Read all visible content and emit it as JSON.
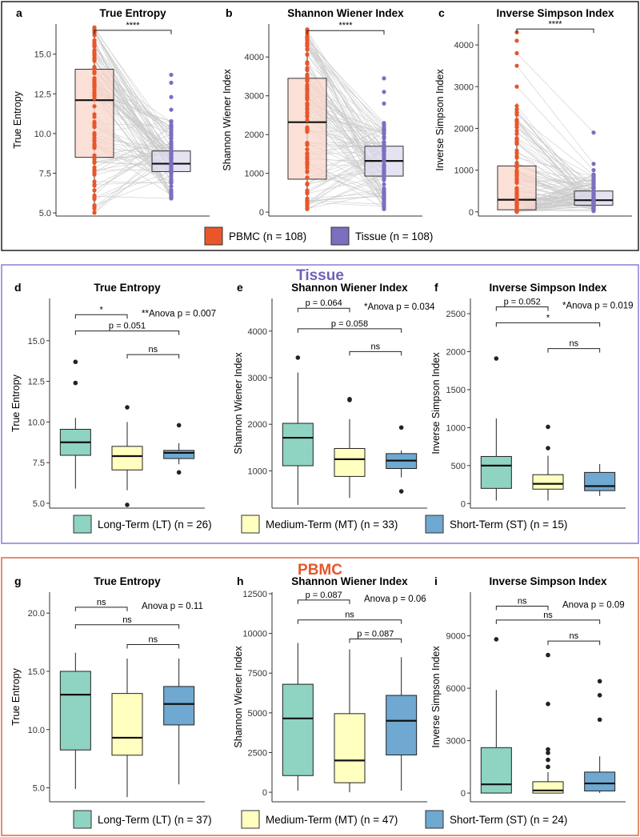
{
  "colors": {
    "pbmc": "#e8562a",
    "pbmc_fill": "#f9d6cb",
    "tissue": "#7b6fbf",
    "tissue_fill": "#dcd9ee",
    "lt": "#8fd3c3",
    "mt": "#ffffbf",
    "st": "#6fa8d0",
    "tissue_frame": "#8a7fd0",
    "pbmc_frame": "#e0673e",
    "tissue_title": "#6d63b8",
    "pbmc_title": "#e8562a"
  },
  "sections": {
    "tissue_title": "Tissue",
    "pbmc_title": "PBMC"
  },
  "legend_top": [
    {
      "label": "PBMC (n = 108)",
      "color": "#e8562a"
    },
    {
      "label": "Tissue (n = 108)",
      "color": "#7b6fbf"
    }
  ],
  "legend_tissue": [
    {
      "label": "Long-Term (LT) (n = 26)",
      "color": "#8fd3c3"
    },
    {
      "label": "Medium-Term (MT) (n = 33)",
      "color": "#ffffbf"
    },
    {
      "label": "Short-Term (ST) (n = 15)",
      "color": "#6fa8d0"
    }
  ],
  "legend_pbmc": [
    {
      "label": "Long-Term (LT) (n = 37)",
      "color": "#8fd3c3"
    },
    {
      "label": "Medium-Term (MT) (n = 47)",
      "color": "#ffffbf"
    },
    {
      "label": "Short-Term (ST) (n = 24)",
      "color": "#6fa8d0"
    }
  ],
  "chart_data": [
    {
      "id": "a",
      "type": "boxplot",
      "title": "True Entropy",
      "ylabel": "True Entropy",
      "ylim": [
        4.8,
        16.9
      ],
      "yticks": [
        5.0,
        7.5,
        10.0,
        12.5,
        15.0
      ],
      "tick_labels": [
        "5.0",
        "7.5",
        "10.0",
        "12.5",
        "15.0"
      ],
      "categories": [
        "PBMC",
        "Tissue"
      ],
      "boxes": [
        {
          "q1": 8.5,
          "median": 12.1,
          "q3": 14.05,
          "lo": 5.0,
          "hi": 16.7,
          "outliers": []
        },
        {
          "q1": 7.6,
          "median": 8.1,
          "q3": 8.9,
          "lo": 5.9,
          "hi": 10.8,
          "outliers": [
            11.5,
            12.3,
            13.2,
            13.7
          ]
        }
      ],
      "paired_points": true,
      "comparisons": [
        {
          "from": 0,
          "to": 1,
          "label": "****",
          "y": 16.5
        }
      ],
      "annotation": ""
    },
    {
      "id": "b",
      "type": "boxplot",
      "title": "Shannon Wiener Index",
      "ylabel": "Shannon Wiener Index",
      "ylim": [
        -100,
        4850
      ],
      "yticks": [
        0,
        1000,
        2000,
        3000,
        4000
      ],
      "tick_labels": [
        "0",
        "1000",
        "2000",
        "3000",
        "4000"
      ],
      "categories": [
        "PBMC",
        "Tissue"
      ],
      "boxes": [
        {
          "q1": 850,
          "median": 2320,
          "q3": 3450,
          "lo": 60,
          "hi": 4750,
          "outliers": []
        },
        {
          "q1": 930,
          "median": 1320,
          "q3": 1700,
          "lo": 60,
          "hi": 2300,
          "outliers": [
            2800,
            3100,
            3450
          ]
        }
      ],
      "paired_points": true,
      "comparisons": [
        {
          "from": 0,
          "to": 1,
          "label": "****",
          "y": 4680
        }
      ],
      "annotation": ""
    },
    {
      "id": "c",
      "type": "boxplot",
      "title": "Inverse Simpson Index",
      "ylabel": "Inverse Simpson Index",
      "ylim": [
        -100,
        4500
      ],
      "yticks": [
        0,
        1000,
        2000,
        3000,
        4000
      ],
      "tick_labels": [
        "0",
        "1000",
        "2000",
        "3000",
        "4000"
      ],
      "categories": [
        "PBMC",
        "Tissue"
      ],
      "boxes": [
        {
          "q1": 50,
          "median": 290,
          "q3": 1100,
          "lo": 0,
          "hi": 2600,
          "outliers": [
            3000,
            3500,
            3800,
            4100,
            4300
          ]
        },
        {
          "q1": 160,
          "median": 280,
          "q3": 500,
          "lo": 0,
          "hi": 900,
          "outliers": [
            1000,
            1150,
            1900
          ]
        }
      ],
      "paired_points": true,
      "comparisons": [
        {
          "from": 0,
          "to": 1,
          "label": "****",
          "y": 4380
        }
      ],
      "annotation": ""
    },
    {
      "id": "d",
      "type": "boxplot",
      "title": "True Entropy",
      "ylabel": "True Entropy",
      "ylim": [
        4.7,
        17.6
      ],
      "yticks": [
        5.0,
        7.5,
        10.0,
        12.5,
        15.0
      ],
      "tick_labels": [
        "5.0",
        "7.5",
        "10.0",
        "12.5",
        "15.0"
      ],
      "categories": [
        "LT",
        "MT",
        "ST"
      ],
      "boxes": [
        {
          "q1": 7.95,
          "median": 8.75,
          "q3": 9.55,
          "lo": 5.9,
          "hi": 10.25,
          "outliers": [
            12.4,
            13.7
          ]
        },
        {
          "q1": 7.05,
          "median": 7.9,
          "q3": 8.5,
          "lo": 5.8,
          "hi": 10.0,
          "outliers": [
            4.9,
            10.9
          ]
        },
        {
          "q1": 7.75,
          "median": 8.1,
          "q3": 8.25,
          "lo": 7.4,
          "hi": 8.7,
          "outliers": [
            6.9,
            9.8
          ]
        }
      ],
      "comparisons": [
        {
          "from": 0,
          "to": 1,
          "label": "*",
          "y": 16.6
        },
        {
          "from": 0,
          "to": 2,
          "label": "p = 0.051",
          "y": 15.6
        },
        {
          "from": 1,
          "to": 2,
          "label": "ns",
          "y": 14.15
        }
      ],
      "annotation": "**Anova p = 0.007",
      "annotation_y": 16.6
    },
    {
      "id": "e",
      "type": "boxplot",
      "title": "Shannon Wiener Index",
      "ylabel": "Shannon Wiener Index",
      "ylim": [
        200,
        4700
      ],
      "yticks": [
        1000,
        2000,
        3000,
        4000
      ],
      "tick_labels": [
        "1000",
        "2000",
        "3000",
        "4000"
      ],
      "categories": [
        "LT",
        "MT",
        "ST"
      ],
      "boxes": [
        {
          "q1": 1110,
          "median": 1710,
          "q3": 2020,
          "lo": 270,
          "hi": 3110,
          "outliers": [
            3430
          ]
        },
        {
          "q1": 880,
          "median": 1250,
          "q3": 1480,
          "lo": 420,
          "hi": 2110,
          "outliers": [
            2520,
            2540
          ]
        },
        {
          "q1": 1050,
          "median": 1220,
          "q3": 1370,
          "lo": 860,
          "hi": 1440,
          "outliers": [
            560,
            1930
          ]
        }
      ],
      "comparisons": [
        {
          "from": 0,
          "to": 1,
          "label": "p = 0.064",
          "y": 4490
        },
        {
          "from": 0,
          "to": 2,
          "label": "p = 0.058",
          "y": 4050
        },
        {
          "from": 1,
          "to": 2,
          "label": "ns",
          "y": 3560
        }
      ],
      "annotation": "*Anova p = 0.034",
      "annotation_y": 4490
    },
    {
      "id": "f",
      "type": "boxplot",
      "title": "Inverse Simpson Index",
      "ylabel": "Inverse Simpson Index",
      "ylim": [
        -60,
        2700
      ],
      "yticks": [
        0,
        500,
        1000,
        1500,
        2000,
        2500
      ],
      "tick_labels": [
        "0",
        "500",
        "1000",
        "1500",
        "2000",
        "2500"
      ],
      "categories": [
        "LT",
        "MT",
        "ST"
      ],
      "boxes": [
        {
          "q1": 200,
          "median": 500,
          "q3": 620,
          "lo": 40,
          "hi": 1120,
          "outliers": [
            1910
          ]
        },
        {
          "q1": 190,
          "median": 260,
          "q3": 380,
          "lo": 40,
          "hi": 630,
          "outliers": [
            730,
            1010
          ]
        },
        {
          "q1": 170,
          "median": 230,
          "q3": 410,
          "lo": 100,
          "hi": 520,
          "outliers": []
        }
      ],
      "comparisons": [
        {
          "from": 0,
          "to": 1,
          "label": "p = 0.052",
          "y": 2590
        },
        {
          "from": 0,
          "to": 2,
          "label": "*",
          "y": 2380
        },
        {
          "from": 1,
          "to": 2,
          "label": "ns",
          "y": 2040
        }
      ],
      "annotation": "*Anova p = 0.019",
      "annotation_y": 2590
    },
    {
      "id": "g",
      "type": "boxplot",
      "title": "True Entropy",
      "ylabel": "True Entropy",
      "ylim": [
        3.8,
        21.8
      ],
      "yticks": [
        5.0,
        10.0,
        15.0,
        20.0
      ],
      "tick_labels": [
        "5.0",
        "10.0",
        "15.0",
        "20.0"
      ],
      "categories": [
        "LT",
        "MT",
        "ST"
      ],
      "boxes": [
        {
          "q1": 8.25,
          "median": 13.0,
          "q3": 15.0,
          "lo": 4.9,
          "hi": 16.6,
          "outliers": []
        },
        {
          "q1": 7.8,
          "median": 9.3,
          "q3": 13.1,
          "lo": 4.2,
          "hi": 16.1,
          "outliers": []
        },
        {
          "q1": 10.4,
          "median": 12.2,
          "q3": 13.7,
          "lo": 5.3,
          "hi": 16.1,
          "outliers": []
        }
      ],
      "comparisons": [
        {
          "from": 0,
          "to": 1,
          "label": "ns",
          "y": 20.5
        },
        {
          "from": 0,
          "to": 2,
          "label": "ns",
          "y": 19.0
        },
        {
          "from": 1,
          "to": 2,
          "label": "ns",
          "y": 17.3
        }
      ],
      "annotation": "Anova p = 0.11",
      "annotation_y": 20.5
    },
    {
      "id": "h",
      "type": "boxplot",
      "title": "Shannon Wiener Index",
      "ylabel": "Shannon Wiener Index",
      "ylim": [
        -600,
        12600
      ],
      "yticks": [
        0,
        2500,
        5000,
        7500,
        10000,
        12500
      ],
      "tick_labels": [
        "0",
        "2500",
        "5000",
        "7500",
        "10000",
        "12500"
      ],
      "categories": [
        "LT",
        "MT",
        "ST"
      ],
      "boxes": [
        {
          "q1": 1050,
          "median": 4650,
          "q3": 6800,
          "lo": 100,
          "hi": 9400,
          "outliers": []
        },
        {
          "q1": 600,
          "median": 2000,
          "q3": 4950,
          "lo": 0,
          "hi": 9000,
          "outliers": []
        },
        {
          "q1": 2350,
          "median": 4500,
          "q3": 6100,
          "lo": 100,
          "hi": 8500,
          "outliers": []
        }
      ],
      "comparisons": [
        {
          "from": 0,
          "to": 1,
          "label": "p = 0.087",
          "y": 12100
        },
        {
          "from": 0,
          "to": 2,
          "label": "ns",
          "y": 10850
        },
        {
          "from": 1,
          "to": 2,
          "label": "p = 0.087",
          "y": 9650
        }
      ],
      "annotation": "Anova p = 0.06",
      "annotation_y": 12100
    },
    {
      "id": "i",
      "type": "boxplot",
      "title": "Inverse Simpson Index",
      "ylabel": "Inverse Simpson Index",
      "ylim": [
        -500,
        11500
      ],
      "yticks": [
        0,
        3000,
        6000,
        9000
      ],
      "tick_labels": [
        "0",
        "3000",
        "6000",
        "9000"
      ],
      "categories": [
        "LT",
        "MT",
        "ST"
      ],
      "boxes": [
        {
          "q1": 0,
          "median": 500,
          "q3": 2600,
          "lo": 0,
          "hi": 5900,
          "outliers": [
            8800
          ]
        },
        {
          "q1": 0,
          "median": 150,
          "q3": 650,
          "lo": 0,
          "hi": 1200,
          "outliers": [
            1500,
            1900,
            2300,
            2500,
            5100,
            7900
          ]
        },
        {
          "q1": 120,
          "median": 550,
          "q3": 1200,
          "lo": 0,
          "hi": 2100,
          "outliers": [
            4200,
            5600,
            6400
          ]
        }
      ],
      "comparisons": [
        {
          "from": 0,
          "to": 1,
          "label": "ns",
          "y": 10700
        },
        {
          "from": 0,
          "to": 2,
          "label": "ns",
          "y": 9900
        },
        {
          "from": 1,
          "to": 2,
          "label": "ns",
          "y": 8700
        }
      ],
      "annotation": "Anova p = 0.09",
      "annotation_y": 10700
    }
  ]
}
